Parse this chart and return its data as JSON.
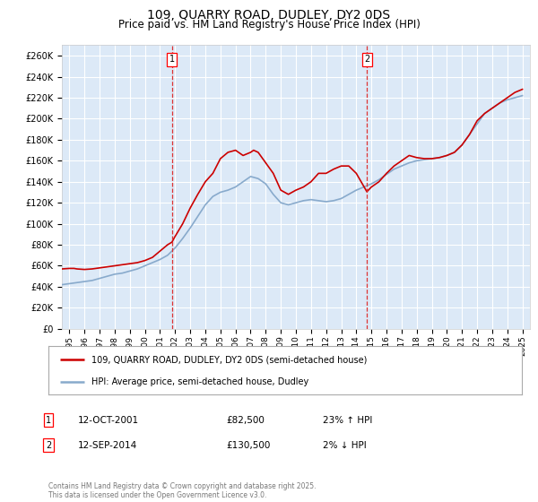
{
  "title": "109, QUARRY ROAD, DUDLEY, DY2 0DS",
  "subtitle": "Price paid vs. HM Land Registry's House Price Index (HPI)",
  "title_fontsize": 10,
  "subtitle_fontsize": 8.5,
  "bg_color": "#dce9f7",
  "plot_bg_color": "#dce9f7",
  "fig_bg_color": "#ffffff",
  "ylim": [
    0,
    270000
  ],
  "yticks": [
    0,
    20000,
    40000,
    60000,
    80000,
    100000,
    120000,
    140000,
    160000,
    180000,
    200000,
    220000,
    240000,
    260000
  ],
  "xlim_start": 1994.5,
  "xlim_end": 2025.5,
  "xtick_years": [
    1995,
    1996,
    1997,
    1998,
    1999,
    2000,
    2001,
    2002,
    2003,
    2004,
    2005,
    2006,
    2007,
    2008,
    2009,
    2010,
    2011,
    2012,
    2013,
    2014,
    2015,
    2016,
    2017,
    2018,
    2019,
    2020,
    2021,
    2022,
    2023,
    2024,
    2025
  ],
  "red_line_color": "#cc0000",
  "blue_line_color": "#88aacc",
  "vline_color": "#dd3333",
  "marker_years": [
    2001.79,
    2014.7
  ],
  "marker_labels": [
    "1",
    "2"
  ],
  "marker_prices": [
    82500,
    130500
  ],
  "legend_items": [
    "109, QUARRY ROAD, DUDLEY, DY2 0DS (semi-detached house)",
    "HPI: Average price, semi-detached house, Dudley"
  ],
  "annotation_rows": [
    {
      "num": "1",
      "date": "12-OCT-2001",
      "price": "£82,500",
      "change": "23% ↑ HPI"
    },
    {
      "num": "2",
      "date": "12-SEP-2014",
      "price": "£130,500",
      "change": "2% ↓ HPI"
    }
  ],
  "footnote": "Contains HM Land Registry data © Crown copyright and database right 2025.\nThis data is licensed under the Open Government Licence v3.0.",
  "hpi_data": {
    "years": [
      1994.5,
      1995,
      1995.5,
      1996,
      1996.5,
      1997,
      1997.5,
      1998,
      1998.5,
      1999,
      1999.5,
      2000,
      2000.5,
      2001,
      2001.5,
      2002,
      2002.5,
      2003,
      2003.5,
      2004,
      2004.5,
      2005,
      2005.5,
      2006,
      2006.5,
      2007,
      2007.5,
      2008,
      2008.5,
      2009,
      2009.5,
      2010,
      2010.5,
      2011,
      2011.5,
      2012,
      2012.5,
      2013,
      2013.5,
      2014,
      2014.5,
      2015,
      2015.5,
      2016,
      2016.5,
      2017,
      2017.5,
      2018,
      2018.5,
      2019,
      2019.5,
      2020,
      2020.5,
      2021,
      2021.5,
      2022,
      2022.5,
      2023,
      2023.5,
      2024,
      2024.5,
      2025
    ],
    "values": [
      42000,
      43000,
      44000,
      45000,
      46000,
      48000,
      50000,
      52000,
      53000,
      55000,
      57000,
      60000,
      63000,
      66000,
      70000,
      77000,
      86000,
      96000,
      107000,
      118000,
      126000,
      130000,
      132000,
      135000,
      140000,
      145000,
      143000,
      138000,
      128000,
      120000,
      118000,
      120000,
      122000,
      123000,
      122000,
      121000,
      122000,
      124000,
      128000,
      132000,
      135000,
      138000,
      142000,
      147000,
      152000,
      155000,
      158000,
      160000,
      161000,
      162000,
      163000,
      165000,
      168000,
      175000,
      185000,
      195000,
      205000,
      210000,
      215000,
      218000,
      220000,
      222000
    ]
  },
  "red_data": {
    "years": [
      1994.5,
      1995,
      1995.3,
      1995.5,
      1996,
      1996.5,
      1997,
      1997.5,
      1998,
      1998.5,
      1999,
      1999.5,
      2000,
      2000.5,
      2001,
      2001.5,
      2001.79,
      2002,
      2002.5,
      2003,
      2003.5,
      2004,
      2004.5,
      2005,
      2005.5,
      2006,
      2006.5,
      2007,
      2007.2,
      2007.5,
      2008,
      2008.5,
      2009,
      2009.5,
      2010,
      2010.5,
      2011,
      2011.5,
      2012,
      2012.5,
      2013,
      2013.5,
      2014,
      2014.7,
      2015,
      2015.5,
      2016,
      2016.5,
      2017,
      2017.5,
      2018,
      2018.5,
      2019,
      2019.5,
      2020,
      2020.5,
      2021,
      2021.5,
      2022,
      2022.5,
      2023,
      2023.5,
      2024,
      2024.5,
      2025
    ],
    "values": [
      57000,
      57500,
      57500,
      57000,
      56500,
      57000,
      58000,
      59000,
      60000,
      61000,
      62000,
      63000,
      65000,
      68000,
      74000,
      80000,
      82500,
      88000,
      100000,
      115000,
      128000,
      140000,
      148000,
      162000,
      168000,
      170000,
      165000,
      168000,
      170000,
      168000,
      158000,
      148000,
      132000,
      128000,
      132000,
      135000,
      140000,
      148000,
      148000,
      152000,
      155000,
      155000,
      148000,
      130500,
      135000,
      140000,
      148000,
      155000,
      160000,
      165000,
      163000,
      162000,
      162000,
      163000,
      165000,
      168000,
      175000,
      185000,
      198000,
      205000,
      210000,
      215000,
      220000,
      225000,
      228000
    ]
  }
}
